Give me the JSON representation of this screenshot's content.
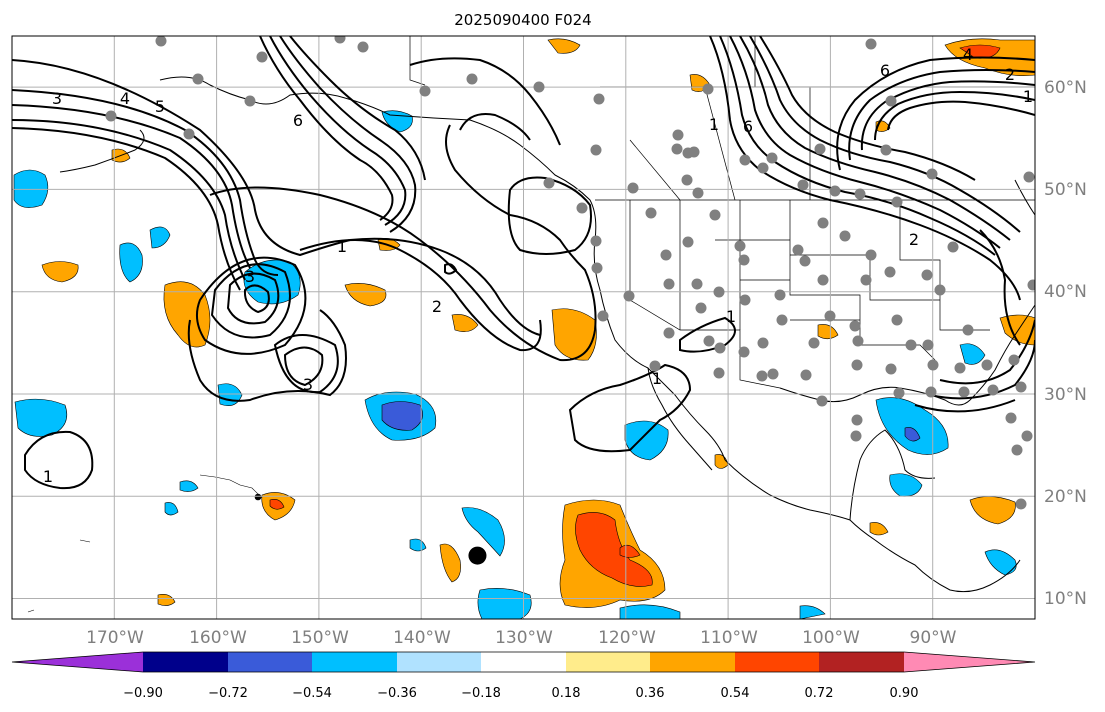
{
  "title": "2025090400 F024",
  "map": {
    "lon_labels": [
      "170°W",
      "160°W",
      "150°W",
      "140°W",
      "130°W",
      "120°W",
      "110°W",
      "100°W",
      "90°W"
    ],
    "lat_labels": [
      "60°N",
      "50°N",
      "40°N",
      "30°N",
      "20°N",
      "10°N"
    ],
    "lon_range": [
      -180,
      -80
    ],
    "lat_range": [
      8,
      65
    ],
    "storm_marker": {
      "lon": -134.5,
      "lat": 14.2
    }
  },
  "contours": {
    "labels": [
      "3",
      "4",
      "5",
      "6",
      "1",
      "2",
      "3",
      "3",
      "1",
      "1",
      "1",
      "2",
      "4",
      "2",
      "6",
      "1",
      "1",
      "6"
    ]
  },
  "colorbar": {
    "ticks": [
      "−0.90",
      "−0.72",
      "−0.54",
      "−0.36",
      "−0.18",
      "0.18",
      "0.36",
      "0.54",
      "0.72",
      "0.90"
    ],
    "colors": [
      "#9b30d9",
      "#00008b",
      "#3a5bd9",
      "#00bfff",
      "#b0e2ff",
      "#ffffff",
      "#ffec8b",
      "#ffa500",
      "#ff4500",
      "#b22222",
      "#ff8ab4"
    ]
  },
  "colors": {
    "neg_strong": "#3a5bd9",
    "neg": "#00bfff",
    "pos": "#ffa500",
    "pos_strong": "#ff4500",
    "station": "#808080",
    "grid": "#b0b0b0"
  }
}
